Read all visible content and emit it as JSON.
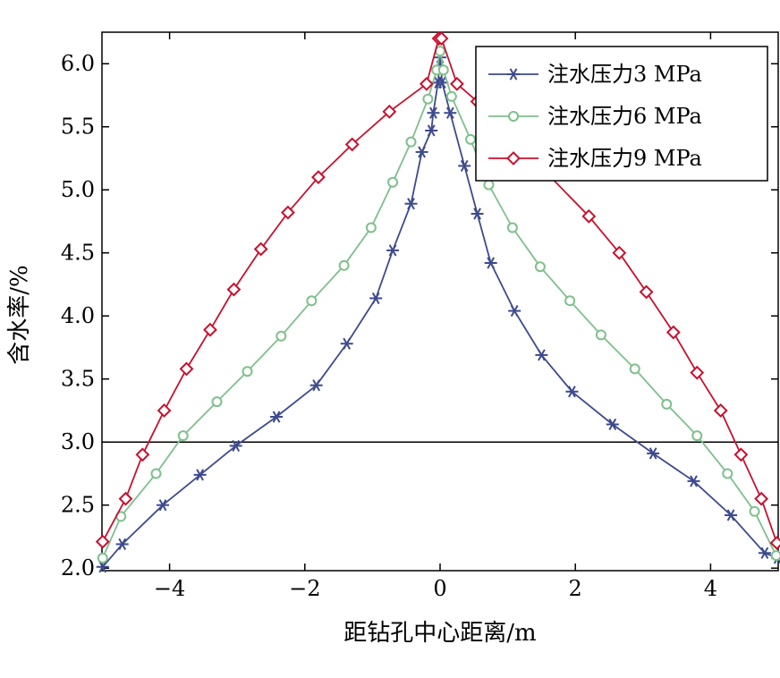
{
  "chart_data": {
    "type": "line",
    "title": "",
    "xlabel": "距钻孔中心距离/m",
    "ylabel": "含水率/%",
    "xlim": [
      -5,
      5
    ],
    "ylim": [
      1.98,
      6.25
    ],
    "xticks": [
      -4,
      -2,
      0,
      2,
      4
    ],
    "xtick_labels": [
      "−4",
      "−2",
      "0",
      "2",
      "4"
    ],
    "yticks": [
      2.0,
      2.5,
      3.0,
      3.5,
      4.0,
      4.5,
      5.0,
      5.5,
      6.0
    ],
    "ytick_labels": [
      "2.0",
      "2.5",
      "3.0",
      "3.5",
      "4.0",
      "4.5",
      "5.0",
      "5.5",
      "6.0"
    ],
    "reference_line_y": 3.0,
    "grid": false,
    "legend_position": "top-right",
    "series": [
      {
        "name": "注水压力3 MPa",
        "color": "#3d4a8e",
        "marker": "asterisk",
        "x": [
          -4.99,
          -4.7,
          -4.1,
          -3.55,
          -3.02,
          -2.42,
          -1.83,
          -1.38,
          -0.95,
          -0.7,
          -0.43,
          -0.27,
          -0.13,
          -0.1,
          -0.03,
          0.0,
          0.03,
          0.15,
          0.36,
          0.55,
          0.75,
          1.1,
          1.5,
          1.95,
          2.55,
          3.15,
          3.75,
          4.3,
          4.8,
          4.99
        ],
        "y": [
          2.01,
          2.19,
          2.5,
          2.74,
          2.97,
          3.2,
          3.45,
          3.78,
          4.14,
          4.52,
          4.89,
          5.3,
          5.47,
          5.61,
          5.85,
          6.05,
          5.85,
          5.61,
          5.19,
          4.81,
          4.42,
          4.04,
          3.69,
          3.4,
          3.14,
          2.91,
          2.69,
          2.42,
          2.12,
          2.08
        ]
      },
      {
        "name": "注水压力6 MPa",
        "color": "#7fbf8d",
        "marker": "circle",
        "x": [
          -4.99,
          -4.72,
          -4.2,
          -3.8,
          -3.3,
          -2.85,
          -2.35,
          -1.9,
          -1.42,
          -1.02,
          -0.7,
          -0.43,
          -0.18,
          -0.05,
          0.0,
          0.05,
          0.17,
          0.45,
          0.72,
          1.07,
          1.48,
          1.92,
          2.38,
          2.88,
          3.35,
          3.8,
          4.25,
          4.65,
          4.97
        ],
        "y": [
          2.08,
          2.41,
          2.75,
          3.05,
          3.32,
          3.56,
          3.84,
          4.12,
          4.4,
          4.7,
          5.06,
          5.38,
          5.72,
          5.95,
          6.1,
          5.95,
          5.74,
          5.4,
          5.04,
          4.7,
          4.39,
          4.12,
          3.85,
          3.58,
          3.3,
          3.05,
          2.75,
          2.45,
          2.1
        ]
      },
      {
        "name": "注水压力9 MPa",
        "color": "#c8102e",
        "marker": "diamond",
        "x": [
          -4.99,
          -4.65,
          -4.4,
          -4.08,
          -3.75,
          -3.4,
          -3.05,
          -2.65,
          -2.25,
          -1.8,
          -1.3,
          -0.75,
          -0.2,
          -0.02,
          0.02,
          0.25,
          0.55,
          2.2,
          2.65,
          3.05,
          3.45,
          3.8,
          4.15,
          4.45,
          4.75,
          4.98
        ],
        "y": [
          2.21,
          2.55,
          2.9,
          3.25,
          3.58,
          3.89,
          4.21,
          4.53,
          4.82,
          5.1,
          5.36,
          5.62,
          5.84,
          6.2,
          6.2,
          5.84,
          5.7,
          4.79,
          4.5,
          4.19,
          3.87,
          3.55,
          3.25,
          2.9,
          2.55,
          2.2
        ]
      }
    ]
  }
}
